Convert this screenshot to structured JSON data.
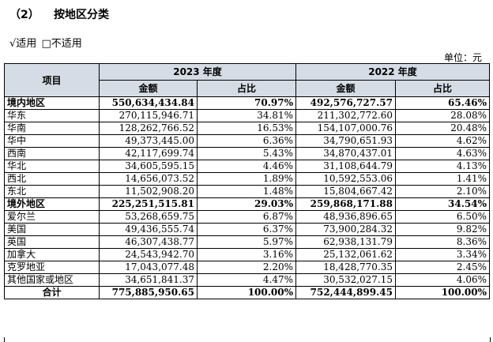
{
  "heading": {
    "number": "（2）",
    "title": "按地区分类"
  },
  "options": {
    "applicable": "√适用",
    "not_applicable": "□不适用"
  },
  "unit": "单位：元",
  "table": {
    "item_header": "项目",
    "year1": "2023 年度",
    "year2": "2022 年度",
    "amount": "金额",
    "ratio": "占比",
    "rows": [
      {
        "name": "境内地区",
        "a1": "550,634,434.84",
        "r1": "70.97%",
        "a2": "492,576,727.57",
        "r2": "65.46%",
        "bold": true
      },
      {
        "name": "华东",
        "a1": "270,115,946.71",
        "r1": "34.81%",
        "a2": "211,302,772.60",
        "r2": "28.08%"
      },
      {
        "name": "华南",
        "a1": "128,262,766.52",
        "r1": "16.53%",
        "a2": "154,107,000.76",
        "r2": "20.48%"
      },
      {
        "name": "华中",
        "a1": "49,373,445.00",
        "r1": "6.36%",
        "a2": "34,790,651.93",
        "r2": "4.62%"
      },
      {
        "name": "西南",
        "a1": "42,117,699.74",
        "r1": "5.43%",
        "a2": "34,870,437.01",
        "r2": "4.63%"
      },
      {
        "name": "华北",
        "a1": "34,605,595.15",
        "r1": "4.46%",
        "a2": "31,108,644.79",
        "r2": "4.13%"
      },
      {
        "name": "西北",
        "a1": "14,656,073.52",
        "r1": "1.89%",
        "a2": "10,592,553.06",
        "r2": "1.41%"
      },
      {
        "name": "东北",
        "a1": "11,502,908.20",
        "r1": "1.48%",
        "a2": "15,804,667.42",
        "r2": "2.10%"
      },
      {
        "name": "境外地区",
        "a1": "225,251,515.81",
        "r1": "29.03%",
        "a2": "259,868,171.88",
        "r2": "34.54%",
        "bold": true
      },
      {
        "name": "爱尔兰",
        "a1": "53,268,659.75",
        "r1": "6.87%",
        "a2": "48,936,896.65",
        "r2": "6.50%"
      },
      {
        "name": "美国",
        "a1": "49,436,555.74",
        "r1": "6.37%",
        "a2": "73,900,284.32",
        "r2": "9.82%"
      },
      {
        "name": "英国",
        "a1": "46,307,438.77",
        "r1": "5.97%",
        "a2": "62,938,131.79",
        "r2": "8.36%"
      },
      {
        "name": "加拿大",
        "a1": "24,543,942.70",
        "r1": "3.16%",
        "a2": "25,132,061.62",
        "r2": "3.34%"
      },
      {
        "name": "克罗地亚",
        "a1": "17,043,077.48",
        "r1": "2.20%",
        "a2": "18,428,770.35",
        "r2": "2.45%"
      },
      {
        "name": "其他国家或地区",
        "a1": "34,651,841.37",
        "r1": "4.47%",
        "a2": "30,532,027.15",
        "r2": "4.06%"
      },
      {
        "name": "合计",
        "a1": "775,885,950.65",
        "r1": "100.00%",
        "a2": "752,444,899.45",
        "r2": "100.00%",
        "bold": true,
        "total": true
      }
    ]
  }
}
